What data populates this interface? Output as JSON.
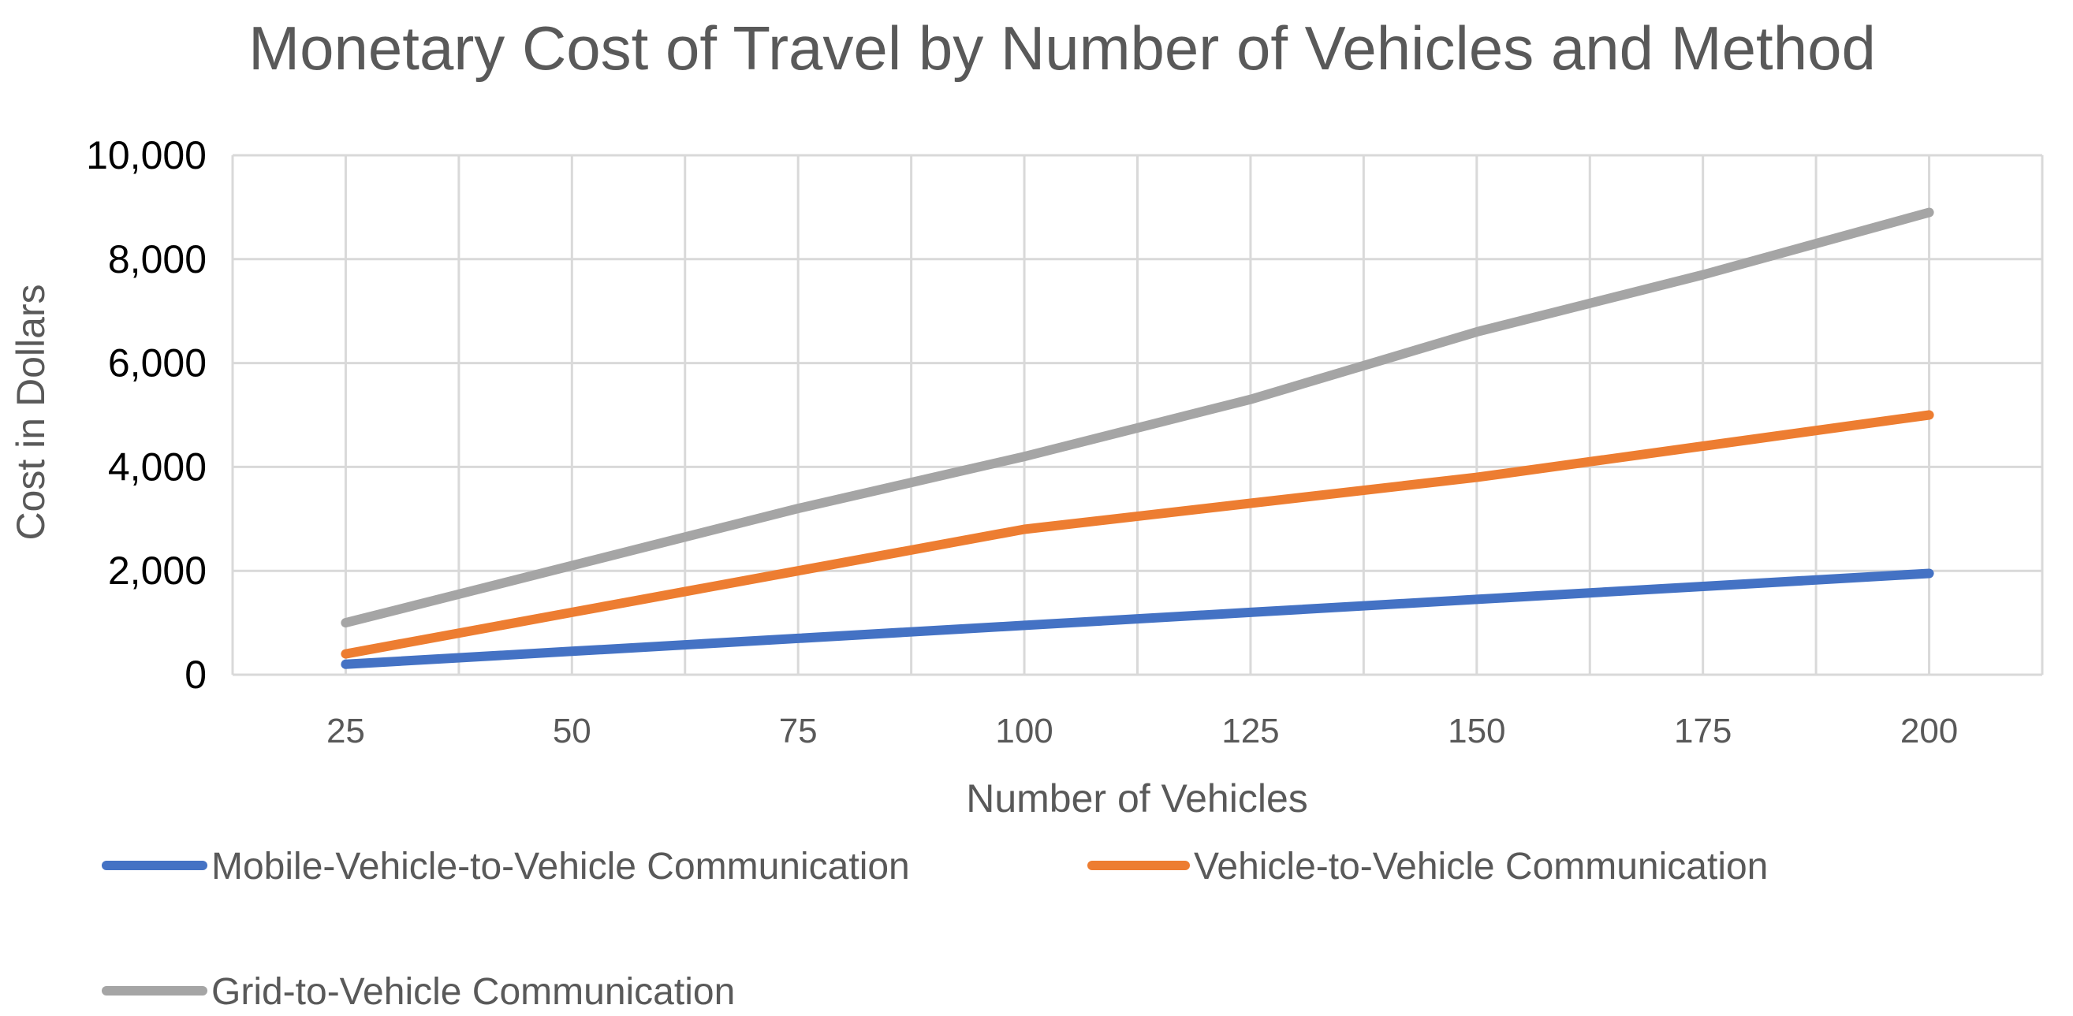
{
  "chart_data": {
    "type": "line",
    "title": "Monetary Cost of Travel by Number of Vehicles and Method",
    "xlabel": "Number of Vehicles",
    "ylabel": "Cost in Dollars",
    "categories": [
      "25",
      "50",
      "75",
      "100",
      "125",
      "150",
      "175",
      "200"
    ],
    "ylim": [
      0,
      10000
    ],
    "yticks": [
      "0",
      "2,000",
      "4,000",
      "6,000",
      "8,000",
      "10,000"
    ],
    "grid": true,
    "legend_position": "bottom",
    "series": [
      {
        "name": "Mobile-Vehicle-to-Vehicle Communication",
        "color": "#4472c4",
        "values": [
          200,
          450,
          700,
          950,
          1200,
          1450,
          1700,
          1950
        ]
      },
      {
        "name": "Vehicle-to-Vehicle Communication",
        "color": "#ed7d31",
        "values": [
          400,
          1200,
          2000,
          2800,
          3300,
          3800,
          4400,
          5000
        ]
      },
      {
        "name": "Grid-to-Vehicle Communication",
        "color": "#a5a5a5",
        "values": [
          1000,
          2100,
          3200,
          4200,
          5300,
          6600,
          7700,
          8900
        ]
      }
    ]
  }
}
